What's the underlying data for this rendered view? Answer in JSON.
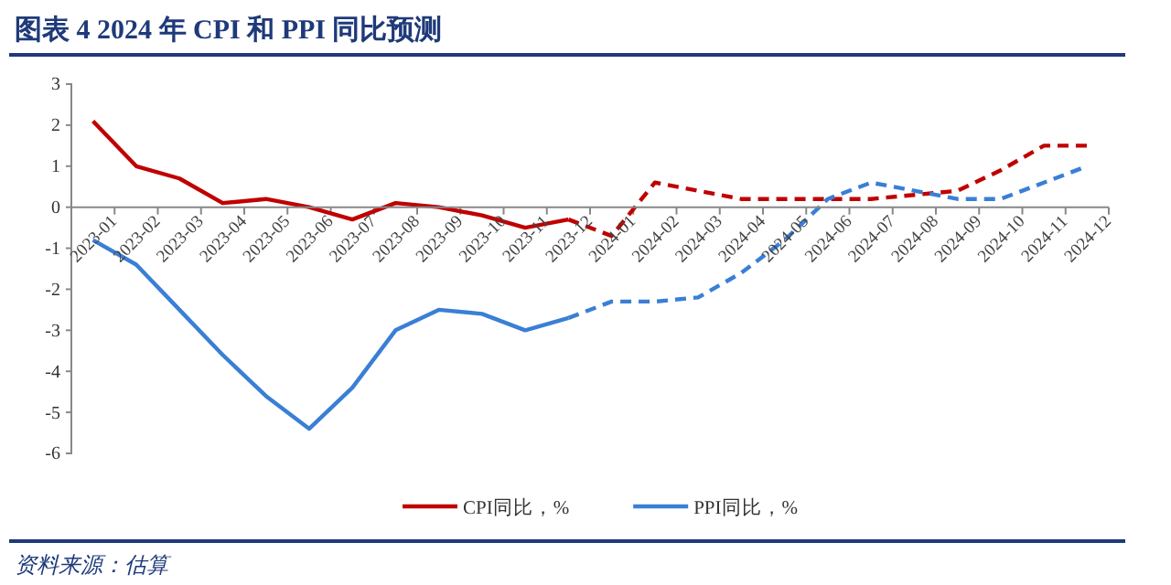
{
  "chart_data": {
    "type": "line",
    "title": "图表 4   2024 年 CPI 和 PPI 同比预测",
    "categories": [
      "2023-01",
      "2023-02",
      "2023-03",
      "2023-04",
      "2023-05",
      "2023-06",
      "2023-07",
      "2023-08",
      "2023-09",
      "2023-10",
      "2023-11",
      "2023-12",
      "2024-01",
      "2024-02",
      "2024-03",
      "2024-04",
      "2024-05",
      "2024-06",
      "2024-07",
      "2024-08",
      "2024-09",
      "2024-10",
      "2024-11",
      "2024-12"
    ],
    "series": [
      {
        "name": "CPI同比，%",
        "color": "#c00000",
        "line_style": "solid",
        "values": [
          2.1,
          1.0,
          0.7,
          0.1,
          0.2,
          0.0,
          -0.3,
          0.1,
          0.0,
          -0.2,
          -0.5,
          -0.3,
          null,
          null,
          null,
          null,
          null,
          null,
          null,
          null,
          null,
          null,
          null,
          null
        ]
      },
      {
        "name": "PPI同比，%",
        "color": "#3a7fd5",
        "line_style": "solid",
        "values": [
          -0.8,
          -1.4,
          -2.5,
          -3.6,
          -4.6,
          -5.4,
          -4.4,
          -3.0,
          -2.5,
          -2.6,
          -3.0,
          -2.7,
          null,
          null,
          null,
          null,
          null,
          null,
          null,
          null,
          null,
          null,
          null,
          null
        ]
      },
      {
        "color": "#c00000",
        "line_style": "dashed",
        "values": [
          null,
          null,
          null,
          null,
          null,
          null,
          null,
          null,
          null,
          null,
          null,
          -0.3,
          -0.7,
          0.6,
          0.4,
          0.2,
          0.2,
          0.2,
          0.2,
          0.3,
          0.4,
          0.9,
          1.5,
          1.5
        ]
      },
      {
        "color": "#3a7fd5",
        "line_style": "dashed",
        "values": [
          null,
          null,
          null,
          null,
          null,
          null,
          null,
          null,
          null,
          null,
          null,
          -2.7,
          -2.3,
          -2.3,
          -2.2,
          -1.6,
          -0.8,
          0.2,
          0.6,
          0.4,
          0.2,
          0.2,
          0.6,
          1.0
        ]
      }
    ],
    "ylim": [
      -6,
      3
    ],
    "yticks": [
      -6,
      -5,
      -4,
      -3,
      -2,
      -1,
      0,
      1,
      2,
      3
    ],
    "grid": false,
    "legend": "bottom",
    "marker": "none",
    "annotations": [
      "资料来源：估算"
    ]
  }
}
